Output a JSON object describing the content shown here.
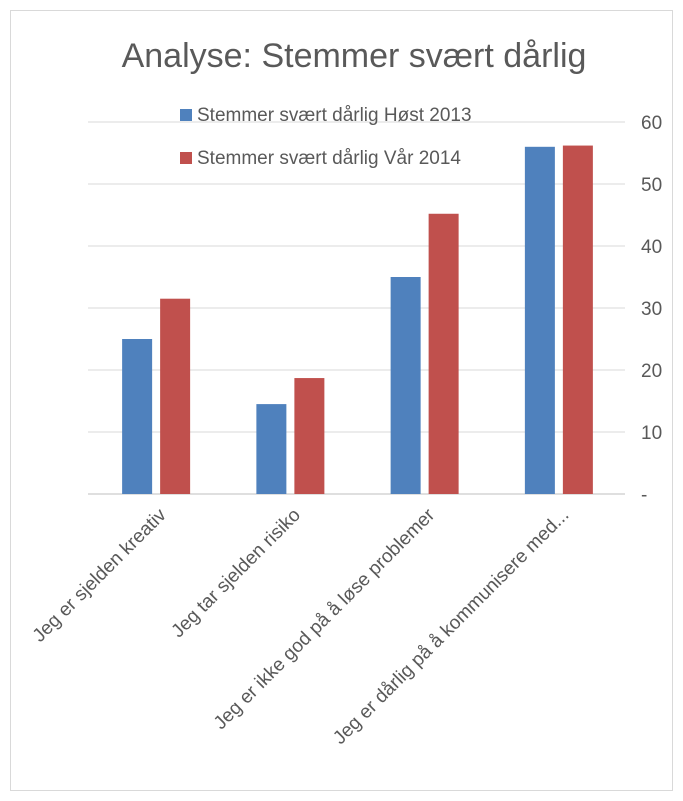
{
  "chart_data": {
    "type": "bar",
    "title": "Analyse: Stemmer svært dårlig",
    "categories": [
      "Jeg er sjelden kreativ",
      "Jeg tar sjelden risiko",
      "Jeg er ikke god på å løse problemer",
      "Jeg er dårlig på å kommunisere med..."
    ],
    "series": [
      {
        "name": "Stemmer svært dårlig Høst 2013",
        "color": "#4f81bd",
        "values": [
          25,
          14.5,
          35,
          56
        ]
      },
      {
        "name": "Stemmer svært dårlig Vår 2014",
        "color": "#c0504d",
        "values": [
          31.5,
          18.7,
          45.2,
          56.2
        ]
      }
    ],
    "y_axis": {
      "position": "right",
      "ylim": [
        0,
        60
      ],
      "tick_labels": [
        "-",
        "10",
        "20",
        "30",
        "40",
        "50",
        "60"
      ]
    },
    "grid": true,
    "legend_placement": "top"
  }
}
